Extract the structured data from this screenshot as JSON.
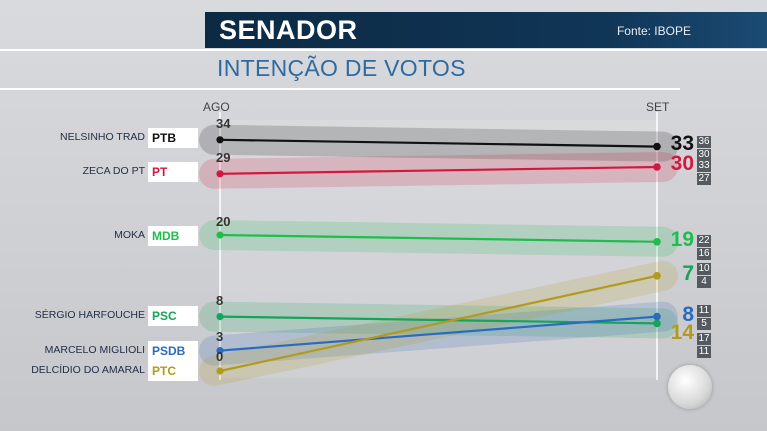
{
  "header": {
    "title": "SENADOR",
    "subtitle": "INTENÇÃO DE VOTOS",
    "source": "Fonte: IBOPE"
  },
  "chart_data": {
    "type": "line",
    "categories": [
      "AGO",
      "SET"
    ],
    "series": [
      {
        "name": "NELSINHO TRAD",
        "party": "PTB",
        "color": "#111111",
        "values": [
          34,
          33
        ],
        "margin": [
          "36",
          "30"
        ]
      },
      {
        "name": "ZECA DO PT",
        "party": "PT",
        "color": "#d3183e",
        "values": [
          29,
          30
        ],
        "margin": [
          "33",
          "27"
        ]
      },
      {
        "name": "MOKA",
        "party": "MDB",
        "color": "#1ebd4c",
        "values": [
          20,
          19
        ],
        "margin": [
          "22",
          "16"
        ]
      },
      {
        "name": "SÉRGIO HARFOUCHE",
        "party": "PSC",
        "color": "#16a35a",
        "values": [
          8,
          7
        ],
        "margin": [
          "10",
          "4"
        ]
      },
      {
        "name": "MARCELO MIGLIOLI",
        "party": "PSDB",
        "color": "#2a6bbf",
        "values": [
          3,
          8
        ],
        "margin": [
          "11",
          "5"
        ]
      },
      {
        "name": "DELCÍDIO DO AMARAL",
        "party": "PTC",
        "color": "#b19a1c",
        "values": [
          0,
          14
        ],
        "margin": [
          "17",
          "11"
        ]
      }
    ]
  }
}
